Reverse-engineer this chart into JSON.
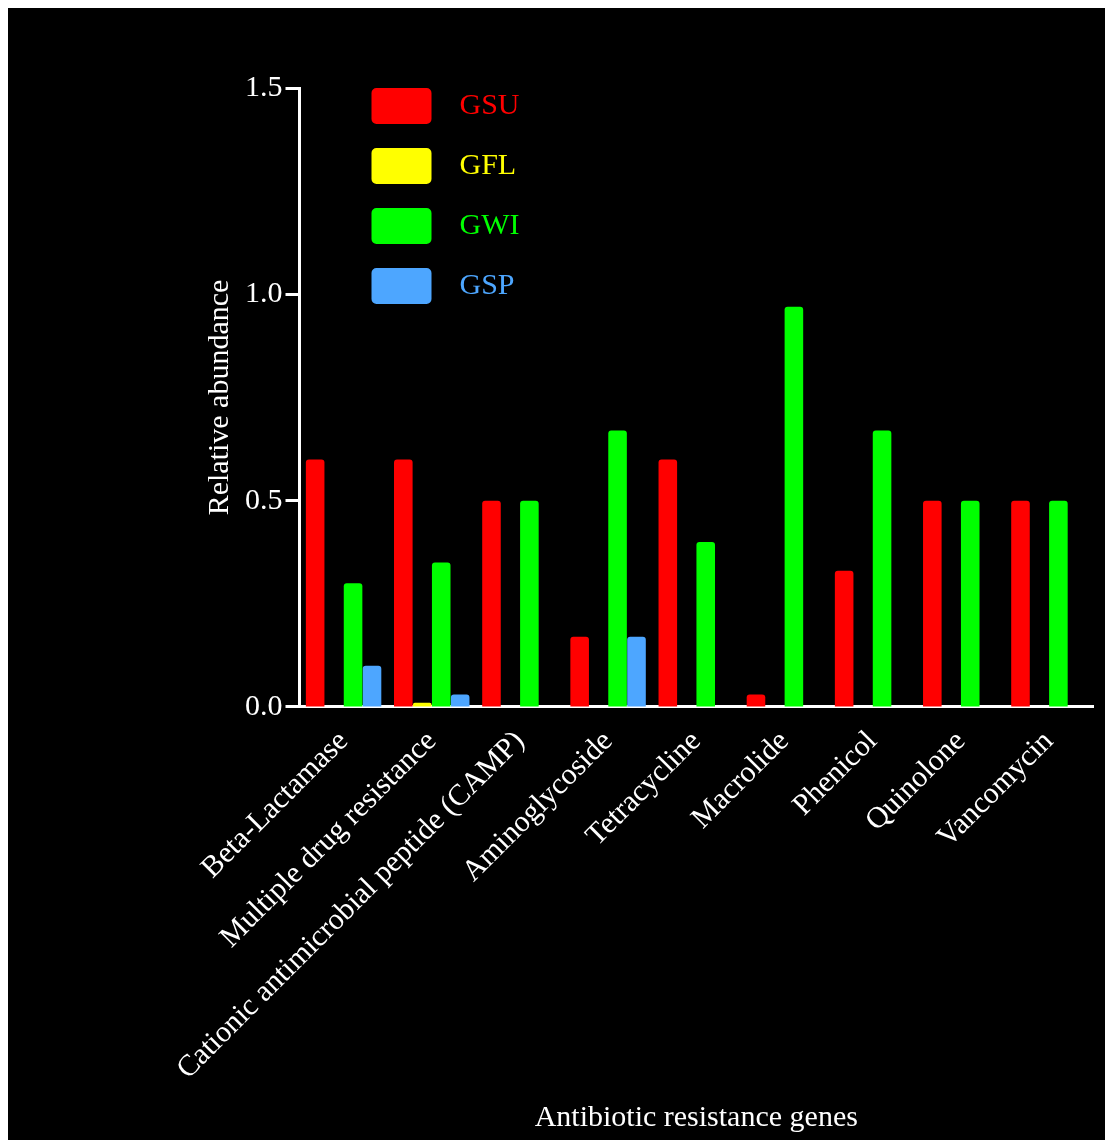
{
  "chart_data": {
    "type": "bar",
    "xlabel": "Antibiotic resistance genes",
    "ylabel": "Relative abundance",
    "categories": [
      "Beta-Lactamase",
      "Multiple drug resistance",
      "Cationic antimicrobial peptide (CAMP)",
      "Aminoglycoside",
      "Tetracycline",
      "Macrolide",
      "Phenicol",
      "Quinolone",
      "Vancomycin"
    ],
    "series": [
      {
        "name": "GSU",
        "color": "#ff0000",
        "values": [
          0.6,
          0.6,
          0.5,
          0.17,
          0.6,
          0.03,
          0.33,
          0.5,
          0.5
        ]
      },
      {
        "name": "GFL",
        "color": "#ffff00",
        "values": [
          0,
          0.01,
          0,
          0,
          0,
          0,
          0,
          0,
          0
        ]
      },
      {
        "name": "GWI",
        "color": "#00ff00",
        "values": [
          0.3,
          0.35,
          0.5,
          0.67,
          0.4,
          0.97,
          0.67,
          0.5,
          0.5
        ]
      },
      {
        "name": "GSP",
        "color": "#4da6ff",
        "values": [
          0.1,
          0.03,
          0,
          0.17,
          0,
          0,
          0,
          0,
          0
        ]
      }
    ],
    "ylim": [
      0,
      1.5
    ],
    "yticks": [
      {
        "value": 0,
        "label": "0.0"
      },
      {
        "value": 0.5,
        "label": "0.5"
      },
      {
        "value": 1,
        "label": "1.0"
      },
      {
        "value": 1.5,
        "label": "1.5"
      }
    ],
    "grid": false,
    "legend": "top left"
  }
}
